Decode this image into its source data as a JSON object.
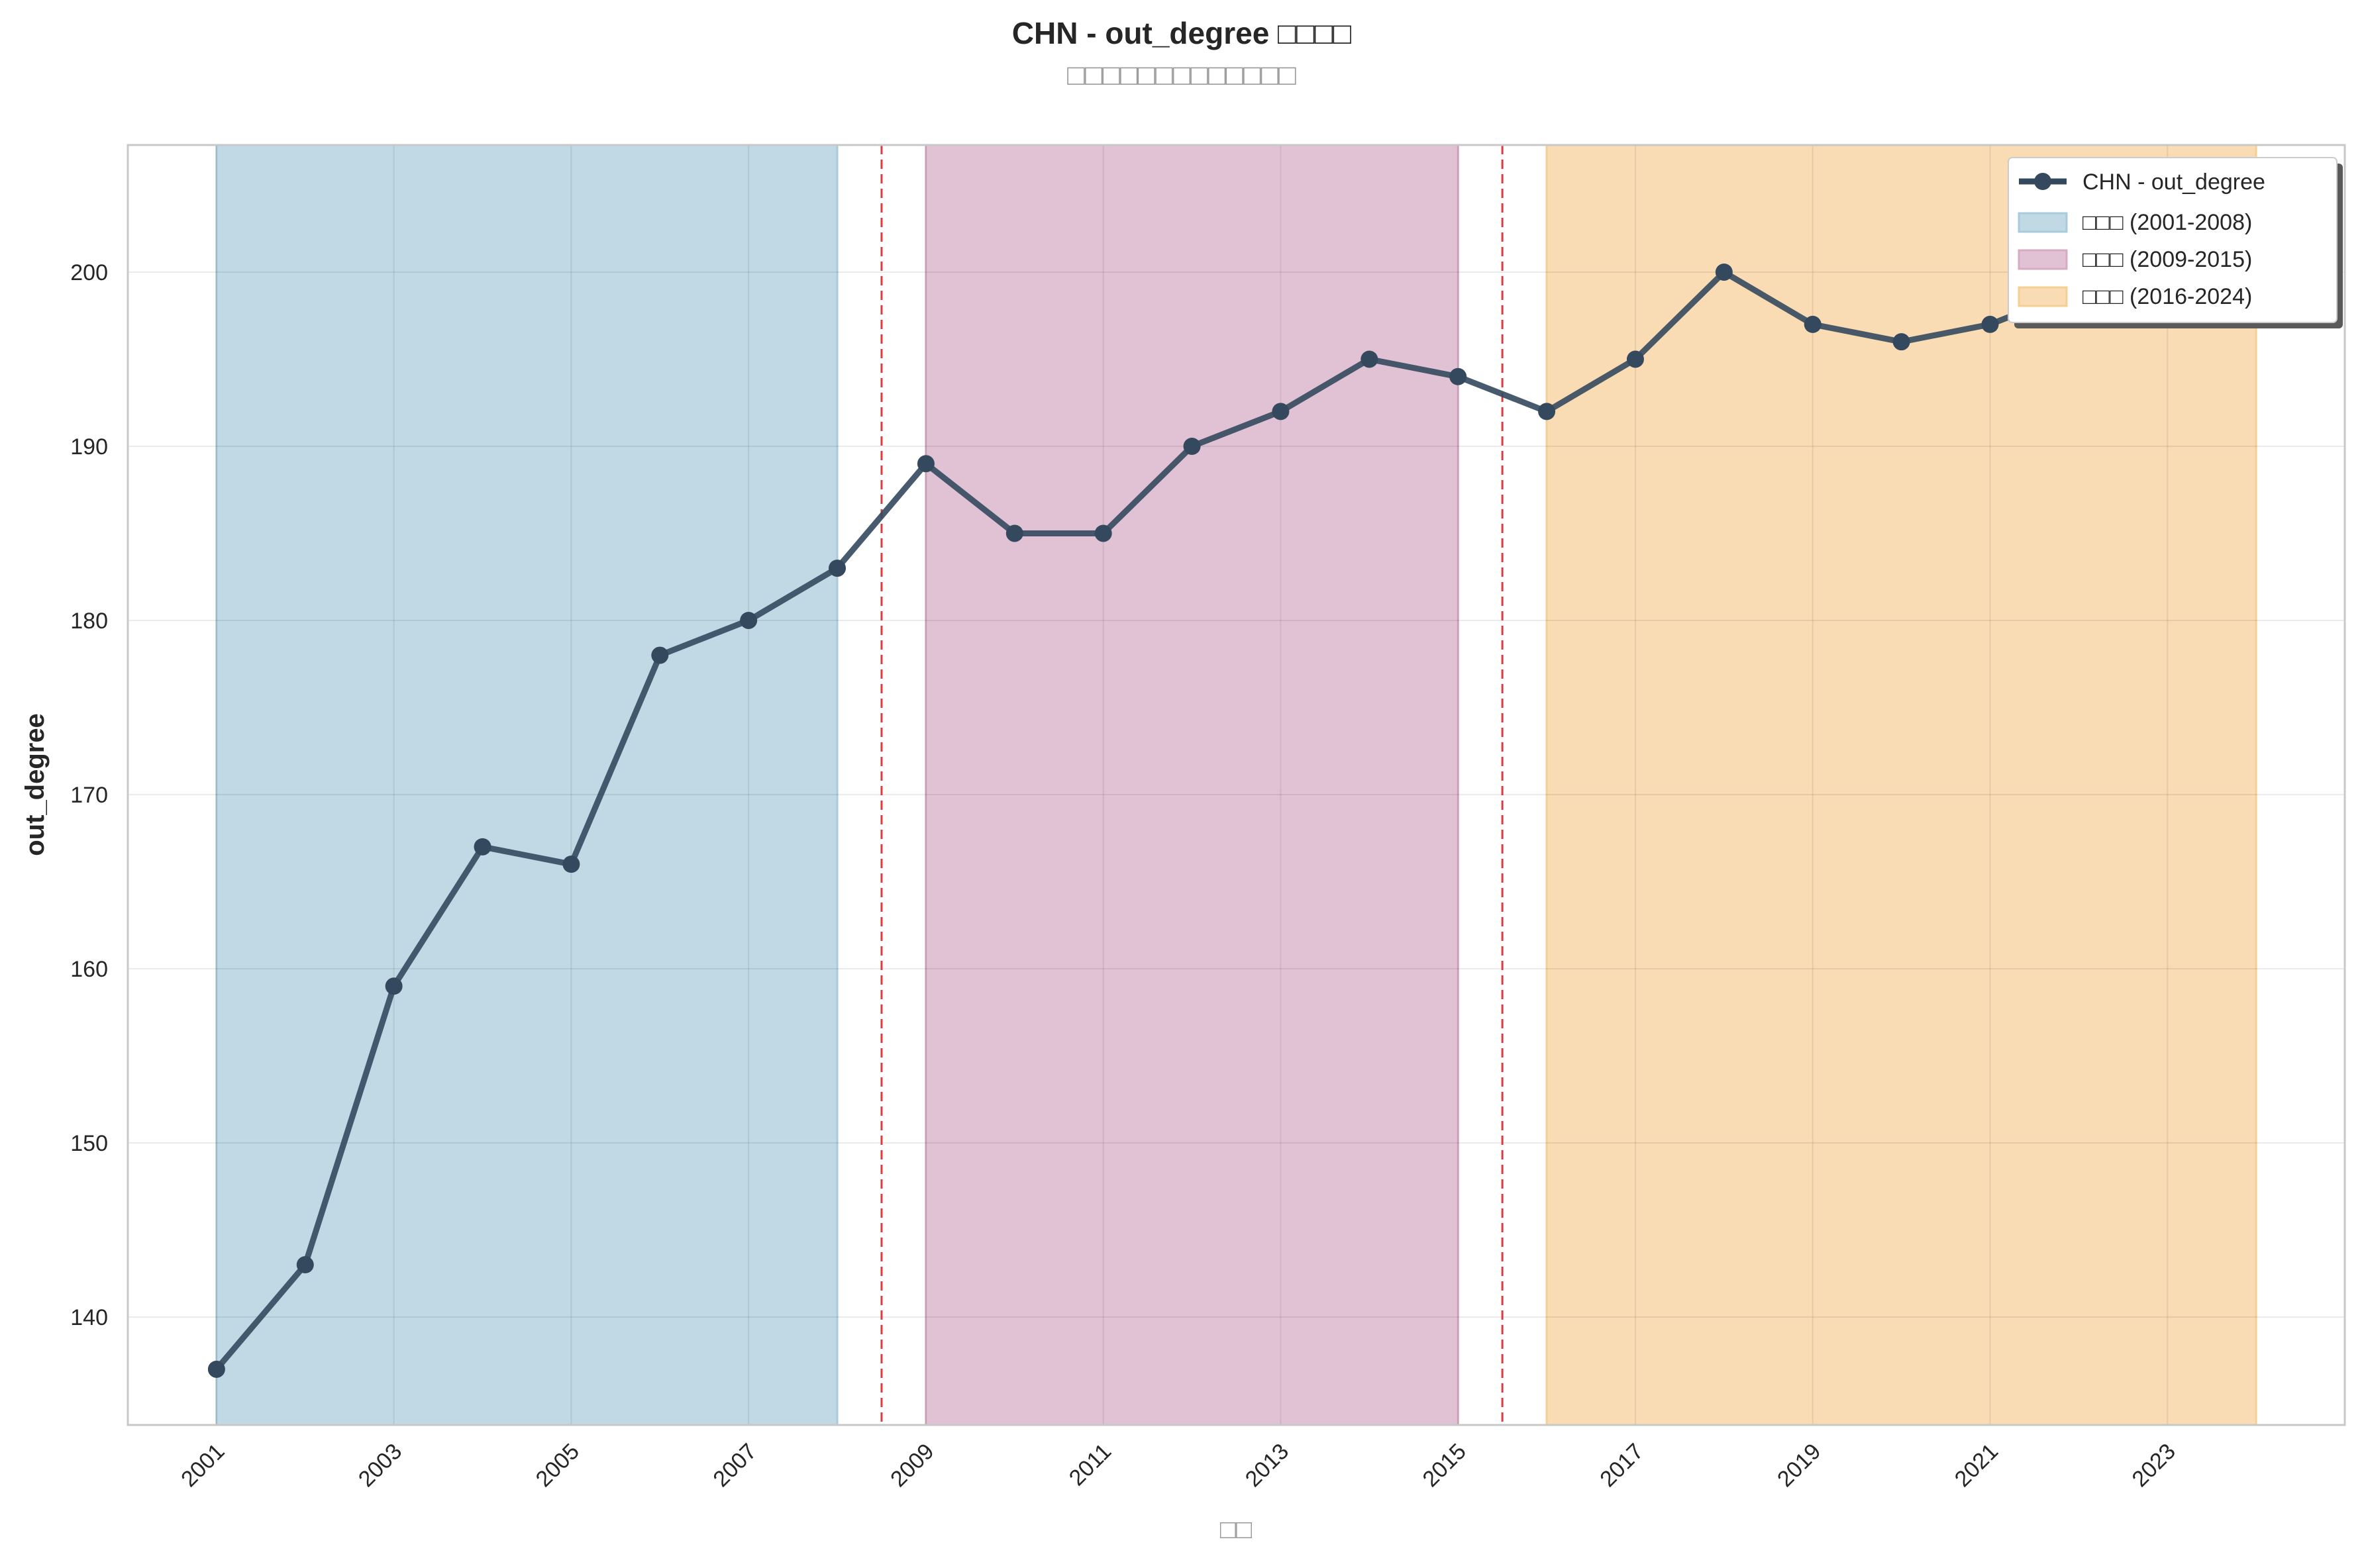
{
  "chart_data": {
    "type": "line",
    "title": "CHN - out_degree □□□□",
    "subtitle": "□□□□□□□□□□□□□",
    "xlabel": "□□",
    "ylabel": "out_degree",
    "xlim": [
      2000,
      2025
    ],
    "ylim": [
      133.8,
      207.3
    ],
    "x_ticks": [
      2001,
      2003,
      2005,
      2007,
      2009,
      2011,
      2013,
      2015,
      2017,
      2019,
      2021,
      2023
    ],
    "y_ticks": [
      140,
      150,
      160,
      170,
      180,
      190,
      200
    ],
    "grid": true,
    "legend_position": "top-right",
    "series": [
      {
        "name": "CHN - out_degree",
        "color": "#34495e",
        "x": [
          2001,
          2002,
          2003,
          2004,
          2005,
          2006,
          2007,
          2008,
          2009,
          2010,
          2011,
          2012,
          2013,
          2014,
          2015,
          2016,
          2017,
          2018,
          2019,
          2020,
          2021,
          2022,
          2023
        ],
        "values": [
          137,
          143,
          159,
          167,
          166,
          178,
          180,
          183,
          189,
          185,
          185,
          190,
          192,
          195,
          194,
          192,
          195,
          200,
          197,
          196,
          197,
          199,
          200
        ]
      }
    ],
    "periods": [
      {
        "label": "□□□ (2001-2008)",
        "start": 2001,
        "end": 2008,
        "color": "#a9cbdb"
      },
      {
        "label": "□□□ (2009-2015)",
        "start": 2009,
        "end": 2015,
        "color": "#d6abc3"
      },
      {
        "label": "□□□ (2016-2024)",
        "start": 2016,
        "end": 2024,
        "color": "#f6cf95"
      }
    ],
    "dividers": [
      2008.5,
      2015.5
    ],
    "divider_color": "#e0393e"
  }
}
